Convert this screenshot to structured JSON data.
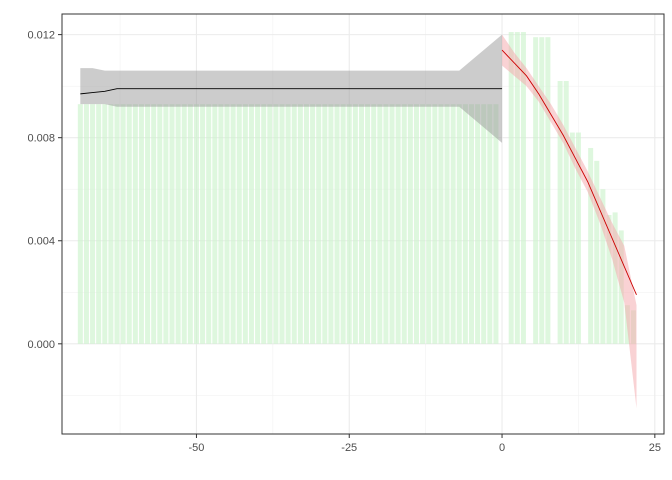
{
  "chart_data": {
    "type": "line",
    "title": "",
    "xlabel": "",
    "ylabel": "",
    "xlim": [
      -72,
      26.5
    ],
    "ylim": [
      -0.0035,
      0.0128
    ],
    "x_ticks": [
      {
        "value": -50,
        "label": "-50"
      },
      {
        "value": -25,
        "label": "-25"
      },
      {
        "value": 0,
        "label": "0"
      },
      {
        "value": 25,
        "label": "25"
      }
    ],
    "y_ticks": [
      {
        "value": 0.0,
        "label": "0.000"
      },
      {
        "value": 0.004,
        "label": "0.004"
      },
      {
        "value": 0.008,
        "label": "0.008"
      },
      {
        "value": 0.012,
        "label": "0.012"
      }
    ],
    "x_minor": [
      -62.5,
      -37.5,
      -12.5,
      12.5
    ],
    "y_minor": [
      -0.002,
      0.002,
      0.006,
      0.01
    ],
    "grid": true,
    "histogram": {
      "color": "#ccf2cc",
      "bars": [
        {
          "x": -69,
          "value": 0.0093
        },
        {
          "x": -68,
          "value": 0.0093
        },
        {
          "x": -67,
          "value": 0.0093
        },
        {
          "x": -66,
          "value": 0.0093
        },
        {
          "x": -65,
          "value": 0.0093
        },
        {
          "x": -64,
          "value": 0.0093
        },
        {
          "x": -63,
          "value": 0.0093
        },
        {
          "x": -62,
          "value": 0.0093
        },
        {
          "x": -61,
          "value": 0.0093
        },
        {
          "x": -60,
          "value": 0.0093
        },
        {
          "x": -59,
          "value": 0.0093
        },
        {
          "x": -58,
          "value": 0.0093
        },
        {
          "x": -57,
          "value": 0.0093
        },
        {
          "x": -56,
          "value": 0.0093
        },
        {
          "x": -55,
          "value": 0.0093
        },
        {
          "x": -54,
          "value": 0.0093
        },
        {
          "x": -53,
          "value": 0.0093
        },
        {
          "x": -52,
          "value": 0.0093
        },
        {
          "x": -51,
          "value": 0.0093
        },
        {
          "x": -50,
          "value": 0.0093
        },
        {
          "x": -49,
          "value": 0.0093
        },
        {
          "x": -48,
          "value": 0.0093
        },
        {
          "x": -47,
          "value": 0.0093
        },
        {
          "x": -46,
          "value": 0.0093
        },
        {
          "x": -45,
          "value": 0.0093
        },
        {
          "x": -44,
          "value": 0.0093
        },
        {
          "x": -43,
          "value": 0.0093
        },
        {
          "x": -42,
          "value": 0.0093
        },
        {
          "x": -41,
          "value": 0.0093
        },
        {
          "x": -40,
          "value": 0.0093
        },
        {
          "x": -39,
          "value": 0.0093
        },
        {
          "x": -38,
          "value": 0.0093
        },
        {
          "x": -37,
          "value": 0.0093
        },
        {
          "x": -36,
          "value": 0.0093
        },
        {
          "x": -35,
          "value": 0.0093
        },
        {
          "x": -34,
          "value": 0.0093
        },
        {
          "x": -33,
          "value": 0.0093
        },
        {
          "x": -32,
          "value": 0.0093
        },
        {
          "x": -31,
          "value": 0.0093
        },
        {
          "x": -30,
          "value": 0.0093
        },
        {
          "x": -29,
          "value": 0.0093
        },
        {
          "x": -28,
          "value": 0.0093
        },
        {
          "x": -27,
          "value": 0.0093
        },
        {
          "x": -26,
          "value": 0.0093
        },
        {
          "x": -25,
          "value": 0.0093
        },
        {
          "x": -24,
          "value": 0.0093
        },
        {
          "x": -23,
          "value": 0.0093
        },
        {
          "x": -22,
          "value": 0.0093
        },
        {
          "x": -21,
          "value": 0.0093
        },
        {
          "x": -20,
          "value": 0.0093
        },
        {
          "x": -19,
          "value": 0.0093
        },
        {
          "x": -18,
          "value": 0.0093
        },
        {
          "x": -17,
          "value": 0.0093
        },
        {
          "x": -16,
          "value": 0.0093
        },
        {
          "x": -15,
          "value": 0.0093
        },
        {
          "x": -14,
          "value": 0.0093
        },
        {
          "x": -13,
          "value": 0.0093
        },
        {
          "x": -12,
          "value": 0.0093
        },
        {
          "x": -11,
          "value": 0.0093
        },
        {
          "x": -10,
          "value": 0.0093
        },
        {
          "x": -9,
          "value": 0.0093
        },
        {
          "x": -8,
          "value": 0.0093
        },
        {
          "x": -7,
          "value": 0.0093
        },
        {
          "x": -6,
          "value": 0.0093
        },
        {
          "x": -5,
          "value": 0.0093
        },
        {
          "x": -4,
          "value": 0.0093
        },
        {
          "x": -3,
          "value": 0.0093
        },
        {
          "x": -2,
          "value": 0.0093
        },
        {
          "x": -1,
          "value": 0.0093
        },
        {
          "x": 1.5,
          "value": 0.0121
        },
        {
          "x": 2.5,
          "value": 0.0121
        },
        {
          "x": 3.5,
          "value": 0.0121
        },
        {
          "x": 5.5,
          "value": 0.0119
        },
        {
          "x": 6.5,
          "value": 0.0119
        },
        {
          "x": 7.5,
          "value": 0.0119
        },
        {
          "x": 9.5,
          "value": 0.0102
        },
        {
          "x": 10.5,
          "value": 0.0102
        },
        {
          "x": 11.5,
          "value": 0.0082
        },
        {
          "x": 12.5,
          "value": 0.0082
        },
        {
          "x": 14.5,
          "value": 0.0076
        },
        {
          "x": 15.5,
          "value": 0.0071
        },
        {
          "x": 16.5,
          "value": 0.006
        },
        {
          "x": 17.5,
          "value": 0.005
        },
        {
          "x": 18.5,
          "value": 0.0051
        },
        {
          "x": 19.5,
          "value": 0.0044
        },
        {
          "x": 20.5,
          "value": 0.0015
        },
        {
          "x": 21.5,
          "value": 0.0013
        }
      ]
    },
    "series": [
      {
        "color": "#000000",
        "band_color": "#999999",
        "x": [
          -69,
          -67,
          -65,
          -63,
          -61,
          -50,
          -40,
          -30,
          -20,
          -10,
          -7,
          0
        ],
        "y": [
          0.0097,
          0.00975,
          0.0098,
          0.0099,
          0.0099,
          0.0099,
          0.0099,
          0.0099,
          0.0099,
          0.0099,
          0.0099,
          0.0099
        ],
        "upper": [
          0.0107,
          0.0107,
          0.0106,
          0.0106,
          0.0106,
          0.0106,
          0.0106,
          0.0106,
          0.0106,
          0.0106,
          0.0106,
          0.012
        ],
        "lower": [
          0.0093,
          0.0093,
          0.0093,
          0.0092,
          0.0092,
          0.0092,
          0.0092,
          0.0092,
          0.0092,
          0.0092,
          0.0092,
          0.0078
        ]
      },
      {
        "color": "#cc0000",
        "band_color": "#f4a6aa",
        "x": [
          0,
          2,
          4,
          6,
          8,
          10,
          12,
          14,
          16,
          18,
          20,
          22
        ],
        "y": [
          0.0114,
          0.0109,
          0.0104,
          0.0097,
          0.0089,
          0.0081,
          0.0072,
          0.0063,
          0.0052,
          0.0041,
          0.003,
          0.0019
        ],
        "upper": [
          0.012,
          0.0113,
          0.0107,
          0.01,
          0.0093,
          0.0085,
          0.0076,
          0.0067,
          0.0057,
          0.0047,
          0.0038,
          0.0015
        ],
        "lower": [
          0.0108,
          0.0104,
          0.01,
          0.0094,
          0.0086,
          0.0078,
          0.0068,
          0.0059,
          0.0047,
          0.0033,
          0.0016,
          -0.0025
        ]
      }
    ]
  }
}
